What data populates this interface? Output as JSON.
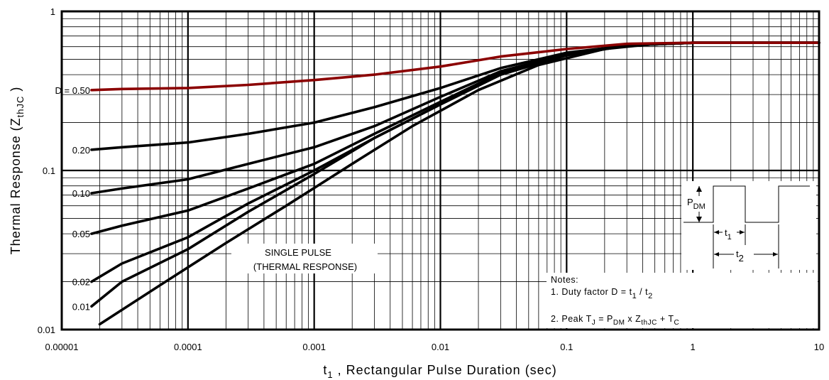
{
  "chart_data": {
    "type": "line",
    "x_scale": "log",
    "y_scale": "log",
    "xlim": [
      1e-05,
      10
    ],
    "ylim": [
      0.01,
      1
    ],
    "grid": true,
    "xlabel": {
      "main": "t",
      "sub": "1",
      "rest": " , Rectangular Pulse Duration (sec)"
    },
    "ylabel": {
      "main": "Thermal Response (Z",
      "sub": "thJC",
      "rest": " )"
    },
    "x_ticks": [
      {
        "value": 1e-05,
        "label": "0.00001"
      },
      {
        "value": 0.0001,
        "label": "0.0001"
      },
      {
        "value": 0.001,
        "label": "0.001"
      },
      {
        "value": 0.01,
        "label": "0.01"
      },
      {
        "value": 0.1,
        "label": "0.1"
      },
      {
        "value": 1,
        "label": "1"
      },
      {
        "value": 10,
        "label": "10"
      }
    ],
    "y_ticks": [
      {
        "value": 1,
        "label": "1"
      },
      {
        "value": 0.1,
        "label": "0.1"
      },
      {
        "value": 0.01,
        "label": "0.01"
      }
    ],
    "series": [
      {
        "name": "D = 0.50",
        "label": "D = 0.50",
        "color": "#8b0000",
        "x": [
          1e-05,
          3e-05,
          0.0001,
          0.0003,
          0.001,
          0.003,
          0.01,
          0.03,
          0.1,
          0.3,
          1,
          3,
          10
        ],
        "y": [
          0.32,
          0.325,
          0.33,
          0.345,
          0.37,
          0.4,
          0.45,
          0.52,
          0.58,
          0.625,
          0.635,
          0.635,
          0.635
        ]
      },
      {
        "name": "0.20",
        "label": "0.20",
        "color": "#000000",
        "x": [
          1e-05,
          3e-05,
          0.0001,
          0.0003,
          0.001,
          0.003,
          0.01,
          0.03,
          0.1,
          0.3,
          1,
          3,
          10
        ],
        "y": [
          0.135,
          0.14,
          0.15,
          0.17,
          0.2,
          0.25,
          0.33,
          0.44,
          0.55,
          0.61,
          0.635,
          0.635,
          0.635
        ]
      },
      {
        "name": "0.10",
        "label": "0.10",
        "color": "#000000",
        "x": [
          1e-05,
          3e-05,
          0.0001,
          0.0003,
          0.001,
          0.003,
          0.01,
          0.03,
          0.1,
          0.3,
          1,
          3,
          10
        ],
        "y": [
          0.072,
          0.077,
          0.088,
          0.11,
          0.14,
          0.19,
          0.29,
          0.42,
          0.54,
          0.61,
          0.635,
          0.635,
          0.635
        ]
      },
      {
        "name": "0.05",
        "label": "0.05",
        "color": "#000000",
        "x": [
          1e-05,
          3e-05,
          0.0001,
          0.0003,
          0.001,
          0.003,
          0.01,
          0.03,
          0.1,
          0.3,
          1,
          3,
          10
        ],
        "y": [
          0.04,
          0.045,
          0.056,
          0.077,
          0.11,
          0.17,
          0.27,
          0.41,
          0.54,
          0.61,
          0.635,
          0.635,
          0.635
        ]
      },
      {
        "name": "0.02",
        "label": "0.02",
        "color": "#000000",
        "x": [
          1e-05,
          3e-05,
          0.0001,
          0.0003,
          0.001,
          0.003,
          0.01,
          0.03,
          0.1,
          0.3,
          1,
          3,
          10
        ],
        "y": [
          0.02,
          0.026,
          0.038,
          0.062,
          0.1,
          0.16,
          0.26,
          0.4,
          0.53,
          0.61,
          0.635,
          0.635,
          0.635
        ]
      },
      {
        "name": "0.01",
        "label": "0.01",
        "color": "#000000",
        "x": [
          1e-05,
          3e-05,
          0.0001,
          0.0003,
          0.001,
          0.003,
          0.01,
          0.03,
          0.1,
          0.3,
          1,
          3,
          10
        ],
        "y": [
          0.014,
          0.02,
          0.032,
          0.055,
          0.095,
          0.16,
          0.26,
          0.4,
          0.53,
          0.61,
          0.635,
          0.635,
          0.635
        ]
      },
      {
        "name": "SINGLE PULSE",
        "label": "",
        "color": "#000000",
        "x": [
          2e-05,
          6e-05,
          0.0002,
          0.0006,
          0.002,
          0.006,
          0.02,
          0.06,
          0.2,
          0.5,
          1,
          3,
          10
        ],
        "y": [
          0.0108,
          0.019,
          0.035,
          0.06,
          0.11,
          0.19,
          0.32,
          0.46,
          0.58,
          0.625,
          0.635,
          0.635,
          0.635
        ]
      }
    ],
    "annotations": {
      "single_pulse": [
        "SINGLE PULSE",
        "(THERMAL RESPONSE)"
      ],
      "pdm": {
        "main": "P",
        "sub": "DM"
      },
      "t1": {
        "main": "t",
        "sub": "1"
      },
      "t2": {
        "main": "t",
        "sub": "2"
      },
      "notes_title": "Notes:",
      "note1_prefix": "1. Duty factor D =  t",
      "note1_sub1": "1",
      "note1_mid": " / t",
      "note1_sub2": "2",
      "note2_prefix": "2. Peak T",
      "note2_sub_j": "J",
      "note2_mid1": " = P",
      "note2_sub_dm": "DM",
      "note2_mid2": " x Z",
      "note2_sub_th": "thJC",
      "note2_mid3": " + T",
      "note2_sub_c": "C"
    }
  }
}
